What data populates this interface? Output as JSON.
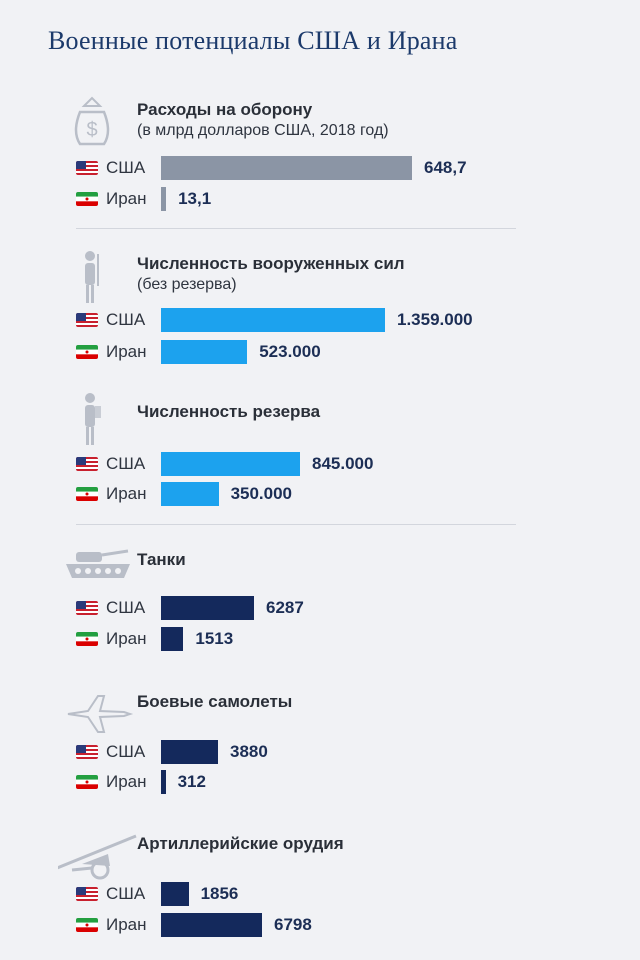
{
  "title": "Военные потенциалы США и Ирана",
  "colors": {
    "grey": "#8b95a5",
    "lightblue": "#1ca2ee",
    "navy": "#14295c"
  },
  "chart_data": [
    {
      "type": "bar",
      "title": "Расходы на оборону",
      "subtitle": "(в млрд долларов США, 2018 год)",
      "icon": "money-bag-icon",
      "color": "grey",
      "categories": [
        "США",
        "Иран"
      ],
      "values": [
        648.7,
        13.1
      ],
      "labels": [
        "648,7",
        "13,1"
      ]
    },
    {
      "type": "bar",
      "title": "Численность вооруженных сил",
      "subtitle": "(без резерва)",
      "icon": "soldier-icon",
      "color": "lightblue",
      "categories": [
        "США",
        "Иран"
      ],
      "values": [
        1359000,
        523000
      ],
      "labels": [
        "1.359.000",
        "523.000"
      ]
    },
    {
      "type": "bar",
      "title": "Численность резерва",
      "subtitle": "",
      "icon": "reserve-soldier-icon",
      "color": "lightblue",
      "categories": [
        "США",
        "Иран"
      ],
      "values": [
        845000,
        350000
      ],
      "labels": [
        "845.000",
        "350.000"
      ]
    },
    {
      "type": "bar",
      "title": "Танки",
      "subtitle": "",
      "icon": "tank-icon",
      "color": "navy",
      "categories": [
        "США",
        "Иран"
      ],
      "values": [
        6287,
        1513
      ],
      "labels": [
        "6287",
        "1513"
      ]
    },
    {
      "type": "bar",
      "title": "Боевые самолеты",
      "subtitle": "",
      "icon": "jet-icon",
      "color": "navy",
      "categories": [
        "США",
        "Иран"
      ],
      "values": [
        3880,
        312
      ],
      "labels": [
        "3880",
        "312"
      ]
    },
    {
      "type": "bar",
      "title": "Артиллерийские орудия",
      "subtitle": "",
      "icon": "artillery-icon",
      "color": "navy",
      "categories": [
        "США",
        "Иран"
      ],
      "values": [
        1856,
        6798
      ],
      "labels": [
        "1856",
        "6798"
      ]
    }
  ]
}
